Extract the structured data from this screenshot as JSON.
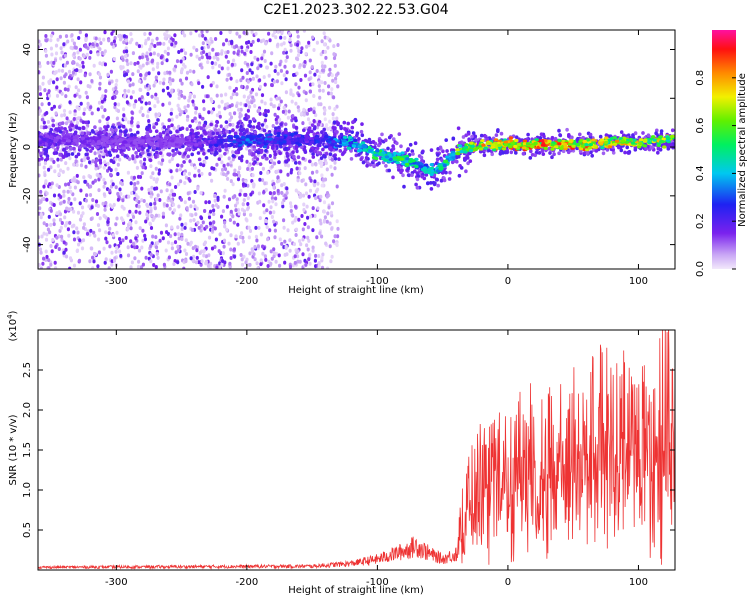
{
  "title": "C2E1.2023.302.22.53.G04",
  "chart_data": [
    {
      "type": "heatmap",
      "xlabel": "Height of straight line (km)",
      "ylabel": "Frequency (Hz)",
      "xlim": [
        -360,
        128
      ],
      "ylim": [
        -50,
        48
      ],
      "xticks": [
        -300,
        -200,
        -100,
        0,
        100
      ],
      "yticks": [
        -40,
        -20,
        0,
        20,
        40
      ],
      "colorbar": {
        "label": "Normalized spectral amplitude",
        "range": [
          0.0,
          1.0
        ],
        "ticks": [
          0.0,
          0.2,
          0.4,
          0.6,
          0.8
        ],
        "colormap": "rainbow (purple-blue-cyan-green-yellow-orange-red-magenta)"
      },
      "ridge": {
        "x": [
          -360,
          -300,
          -250,
          -200,
          -150,
          -120,
          -100,
          -80,
          -70,
          -60,
          -50,
          -40,
          -30,
          -20,
          0,
          20,
          40,
          60,
          80,
          100,
          128
        ],
        "frequency": [
          3,
          2,
          2,
          3,
          3,
          2,
          -3,
          -5,
          -7,
          -10,
          -8,
          -2,
          0,
          1,
          1,
          1,
          1,
          1,
          2,
          2,
          3
        ],
        "amplitude": [
          0.2,
          0.15,
          0.15,
          0.35,
          0.25,
          0.45,
          0.55,
          0.6,
          0.5,
          0.45,
          0.5,
          0.65,
          0.8,
          0.85,
          0.85,
          0.9,
          0.9,
          0.85,
          0.8,
          0.75,
          0.75
        ]
      },
      "noise_region_x": [
        -360,
        -145
      ],
      "grid": false
    },
    {
      "type": "line",
      "xlabel": "Height of straight line (km)",
      "ylabel": "SNR (10 * v/v)",
      "y_multiplier": "(x10^4)",
      "xlim": [
        -360,
        128
      ],
      "ylim": [
        0,
        3.0
      ],
      "xticks": [
        -300,
        -200,
        -100,
        0,
        100
      ],
      "yticks": [
        0.5,
        1.0,
        1.5,
        2.0,
        2.5
      ],
      "line_color": "#ee3333",
      "series": [
        {
          "envelope_x": [
            -360,
            -150,
            -120,
            -100,
            -80,
            -70,
            -60,
            -50,
            -40,
            -30,
            -20,
            -10,
            0,
            20,
            40,
            60,
            80,
            100,
            120,
            128
          ],
          "envelope_y": [
            0.05,
            0.07,
            0.12,
            0.2,
            0.35,
            0.45,
            0.3,
            0.2,
            0.3,
            1.3,
            1.5,
            1.6,
            1.7,
            1.9,
            2.1,
            2.2,
            2.3,
            2.35,
            2.5,
            2.4
          ]
        }
      ],
      "grid": false
    }
  ]
}
